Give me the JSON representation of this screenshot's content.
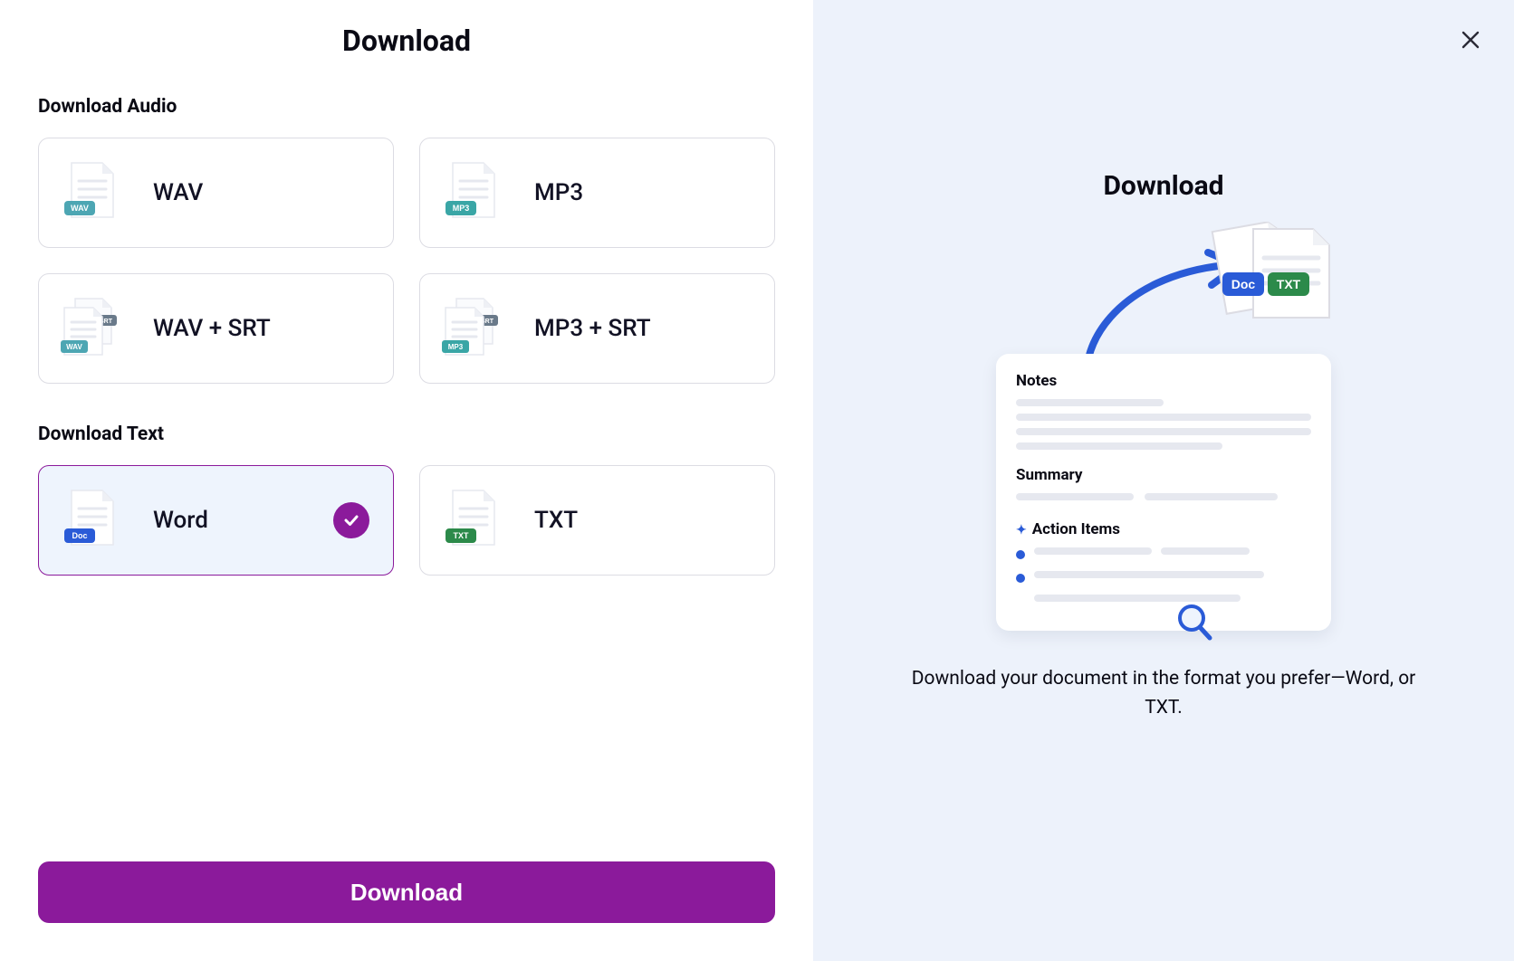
{
  "left": {
    "title": "Download",
    "sections": {
      "audio": {
        "title": "Download Audio",
        "options": [
          {
            "key": "wav",
            "label": "WAV",
            "badge_text": "WAV",
            "badge_color": "#4da6b3",
            "dual": false,
            "selected": false
          },
          {
            "key": "mp3",
            "label": "MP3",
            "badge_text": "MP3",
            "badge_color": "#3aa6a6",
            "dual": false,
            "selected": false
          },
          {
            "key": "wav_srt",
            "label": "WAV + SRT",
            "badge_text": "WAV",
            "badge_color": "#4da6b3",
            "dual": true,
            "srt_badge": "SRT",
            "srt_color": "#6a7a8a",
            "selected": false
          },
          {
            "key": "mp3_srt",
            "label": "MP3 + SRT",
            "badge_text": "MP3",
            "badge_color": "#3aa6a6",
            "dual": true,
            "srt_badge": "SRT",
            "srt_color": "#6a7a8a",
            "selected": false
          }
        ]
      },
      "text": {
        "title": "Download Text",
        "options": [
          {
            "key": "word",
            "label": "Word",
            "badge_text": "Doc",
            "badge_color": "#2a5bd7",
            "dual": false,
            "selected": true
          },
          {
            "key": "txt",
            "label": "TXT",
            "badge_text": "TXT",
            "badge_color": "#2c8a4a",
            "dual": false,
            "selected": false
          }
        ]
      }
    },
    "download_button": "Download"
  },
  "right": {
    "title": "Download",
    "card": {
      "notes": "Notes",
      "summary": "Summary",
      "action_items": "Action Items"
    },
    "doc_badge": {
      "text": "Doc",
      "color": "#2a5bd7"
    },
    "txt_badge": {
      "text": "TXT",
      "color": "#2c8a4a"
    },
    "description": "Download your document in the format you prefer—Word, or TXT."
  },
  "colors": {
    "accent": "#8b1a9b",
    "panel_bg": "#edf2fb",
    "border": "#dcdce3",
    "blue": "#2a5bd7"
  }
}
